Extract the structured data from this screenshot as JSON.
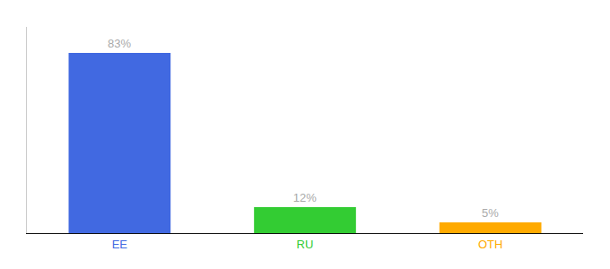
{
  "chart_data": {
    "type": "bar",
    "categories": [
      "EE",
      "RU",
      "OTH"
    ],
    "values": [
      83,
      12,
      5
    ],
    "value_labels": [
      "83%",
      "12%",
      "5%"
    ],
    "colors": [
      "#4169e1",
      "#33cc33",
      "#ffaa00"
    ],
    "ylim": [
      0,
      95
    ],
    "grid": false,
    "data_labels": true,
    "tick_labels": "x"
  }
}
